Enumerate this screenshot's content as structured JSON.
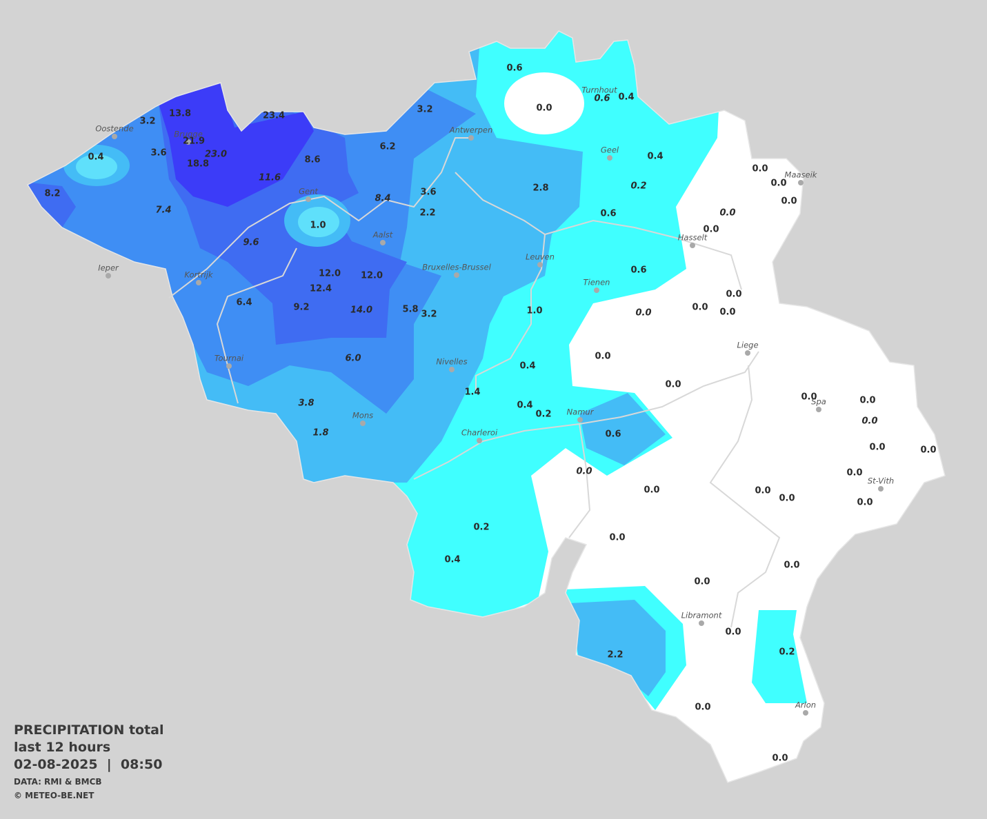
{
  "cities": [
    "Oostende",
    "Brugge",
    "Turnhout",
    "Antwerpen",
    "Geel",
    "Maaseik",
    "Gent",
    "Hasselt",
    "Aalst",
    "Ieper",
    "Kortrijk",
    "Bruxelles-Brussel",
    "Leuven",
    "Tienen",
    "Liege",
    "Tournai",
    "Nivelles",
    "Spa",
    "Namur",
    "Mons",
    "Charleroi",
    "St-Vith",
    "Libramont",
    "Arlon"
  ],
  "values": [
    "0.6",
    "0.0",
    "0.6",
    "0.4",
    "3.2",
    "13.8",
    "23.4",
    "3.2",
    "21.9",
    "23.0",
    "18.8",
    "0.4",
    "3.6",
    "6.2",
    "8.6",
    "0.4",
    "0.0",
    "0.0",
    "11.6",
    "2.8",
    "0.2",
    "8.2",
    "3.6",
    "8.4",
    "0.0",
    "7.4",
    "2.2",
    "0.6",
    "0.0",
    "1.0",
    "0.0",
    "9.6",
    "0.6",
    "12.0",
    "12.0",
    "12.4",
    "0.0",
    "6.4",
    "9.2",
    "14.0",
    "5.8",
    "3.2",
    "1.0",
    "0.0",
    "0.0",
    "0.0",
    "6.0",
    "0.0",
    "0.4",
    "0.0",
    "1.4",
    "0.0",
    "0.0",
    "3.8",
    "0.4",
    "0.2",
    "0.0",
    "1.8",
    "0.6",
    "0.0",
    "0.0",
    "0.0",
    "0.0",
    "0.0",
    "0.0",
    "0.0",
    "0.0",
    "0.2",
    "0.0",
    "0.4",
    "0.0",
    "0.0",
    "0.0",
    "2.2",
    "0.2",
    "0.0",
    "0.0"
  ],
  "caption": {
    "title": "PRECIPITATION total",
    "period": "last 12 hours",
    "datetime": "02-08-2025  |  08:50",
    "source": "DATA: RMI & BMCB",
    "credit": "© METEO-BE.NET"
  }
}
